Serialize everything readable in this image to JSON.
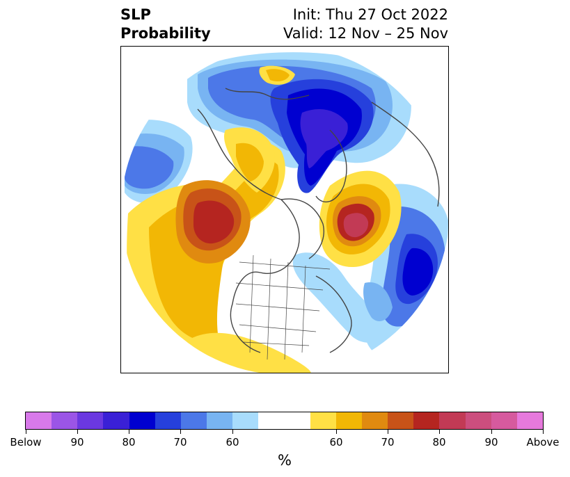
{
  "header": {
    "title_line1": "SLP",
    "title_line2": "Probability",
    "init": "Init: Thu 27 Oct 2022",
    "valid": "Valid: 12 Nov – 25 Nov"
  },
  "map": {
    "projection": "north-polar-stereographic",
    "colors": {
      "below_90": "#9b55e6",
      "below_80": "#3a20d6",
      "below_70": "#1c36d8",
      "below_60": "#78b4f2",
      "neutral": "#ffffff",
      "above_60": "#ffe045",
      "above_70": "#e08a10",
      "above_80": "#b52520",
      "above_90": "#d65a9e"
    }
  },
  "colorbar": {
    "colors": [
      "#d879ea",
      "#9b55e6",
      "#6b38e0",
      "#3a20d6",
      "#0000d0",
      "#2640dc",
      "#4c78e8",
      "#78b4f2",
      "#a8dcfc",
      "#ffffff",
      "#ffe045",
      "#f2b705",
      "#e08a10",
      "#c85318",
      "#b52520",
      "#c23a55",
      "#cc4e7e",
      "#d65a9e",
      "#e679dc"
    ],
    "labels": [
      "Below",
      "90",
      "80",
      "70",
      "60",
      "60",
      "70",
      "80",
      "90",
      "Above"
    ],
    "unit": "%"
  }
}
